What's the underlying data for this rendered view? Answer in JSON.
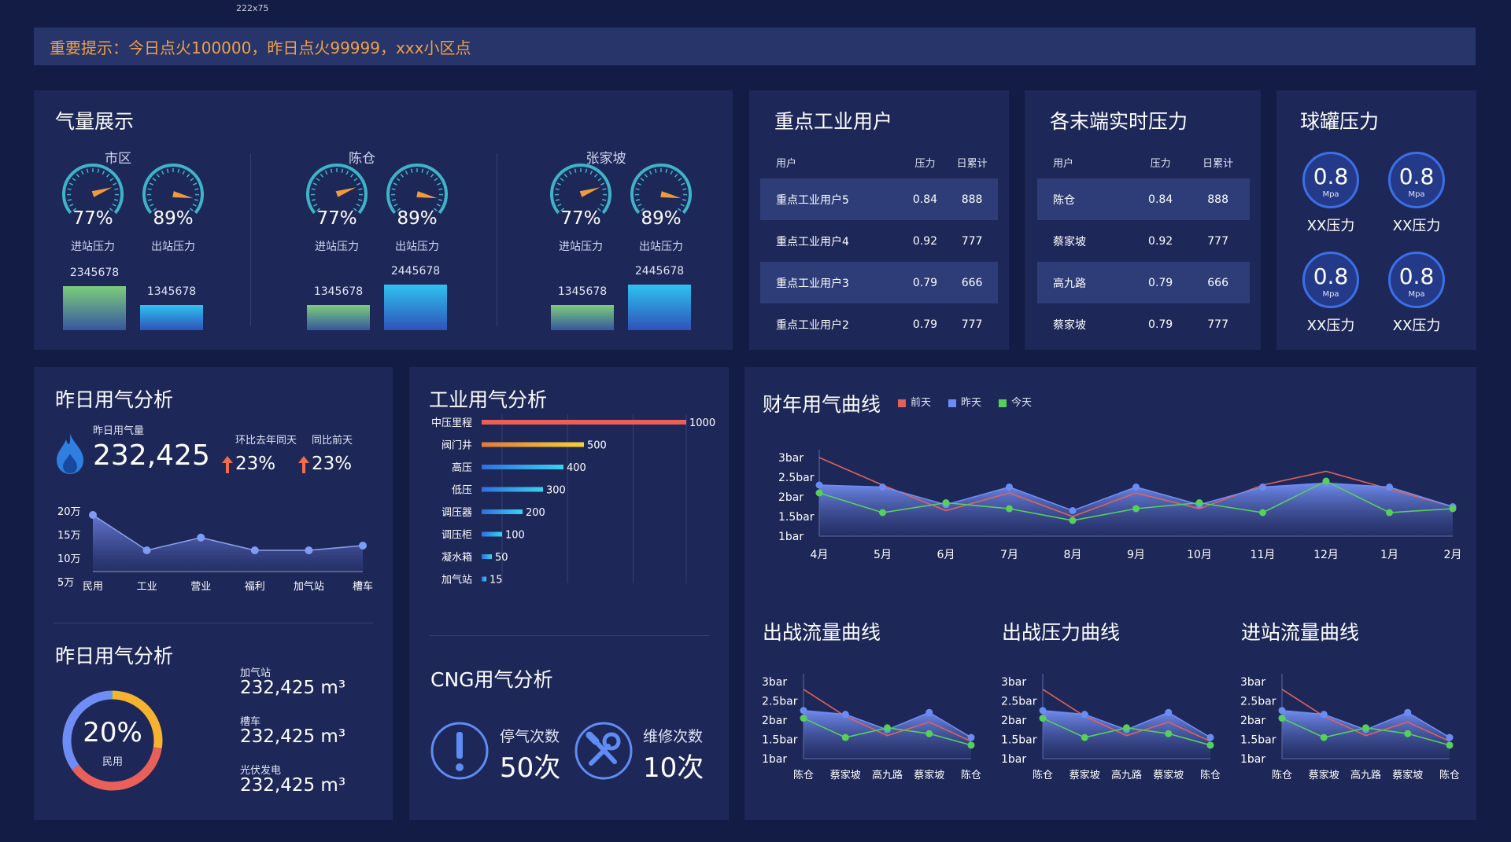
{
  "tiny_label": "222x75",
  "notice": "重要提示：今日点火100000，昨日点火99999，xxx小区点",
  "gas_display": {
    "title": "气量展示",
    "groups": [
      {
        "name": "市区",
        "in_pct": "77%",
        "out_pct": "89%",
        "in_value": 0.77,
        "out_value": 0.89,
        "in_label": "进站压力",
        "out_label": "出站压力",
        "bar1": "2345678",
        "bar2": "1345678"
      },
      {
        "name": "陈仓",
        "in_pct": "77%",
        "out_pct": "89%",
        "in_value": 0.77,
        "out_value": 0.89,
        "in_label": "进站压力",
        "out_label": "出站压力",
        "bar1": "1345678",
        "bar2": "2445678"
      },
      {
        "name": "张家坡",
        "in_pct": "77%",
        "out_pct": "89%",
        "in_value": 0.77,
        "out_value": 0.89,
        "in_label": "进站压力",
        "out_label": "出站压力",
        "bar1": "1345678",
        "bar2": "2445678"
      }
    ]
  },
  "industrial_users": {
    "title": "重点工业用户",
    "headers": [
      "用户",
      "压力",
      "日累计"
    ],
    "rows": [
      [
        "重点工业用户5",
        "0.84",
        "888"
      ],
      [
        "重点工业用户4",
        "0.92",
        "777"
      ],
      [
        "重点工业用户3",
        "0.79",
        "666"
      ],
      [
        "重点工业用户2",
        "0.79",
        "777"
      ]
    ]
  },
  "terminal_pressure": {
    "title": "各末端实时压力",
    "headers": [
      "用户",
      "压力",
      "日累计"
    ],
    "rows": [
      [
        "陈仓",
        "0.84",
        "888"
      ],
      [
        "蔡家坡",
        "0.92",
        "777"
      ],
      [
        "高九路",
        "0.79",
        "666"
      ],
      [
        "蔡家坡",
        "0.79",
        "777"
      ]
    ]
  },
  "tank_pressure": {
    "title": "球罐压力",
    "tanks": [
      {
        "value": "0.8",
        "unit": "Mpa",
        "label": "XX压力"
      },
      {
        "value": "0.8",
        "unit": "Mpa",
        "label": "XX压力"
      },
      {
        "value": "0.8",
        "unit": "Mpa",
        "label": "XX压力"
      },
      {
        "value": "0.8",
        "unit": "Mpa",
        "label": "XX压力"
      }
    ]
  },
  "yesterday_usage": {
    "title": "昨日用气分析",
    "usage_label": "昨日用气量",
    "usage_value": "232,425",
    "yoy_label": "环比去年同天",
    "yoy_value": "23%",
    "dod_label": "同比前天",
    "dod_value": "23%"
  },
  "yesterday_usage2": {
    "title": "昨日用气分析",
    "donut_pct": "20%",
    "donut_value": 0.2,
    "donut_label": "民用",
    "items": [
      {
        "label": "加气站",
        "value": "232,425 m³"
      },
      {
        "label": "槽车",
        "value": "232,425 m³"
      },
      {
        "label": "光伏发电",
        "value": "232,425 m³"
      }
    ]
  },
  "industry_analysis": {
    "title": "工业用气分析"
  },
  "cng": {
    "title": "CNG用气分析",
    "stop_label": "停气次数",
    "stop_value": "50次",
    "repair_label": "维修次数",
    "repair_value": "10次"
  },
  "fiscal_chart": {
    "title": "财年用气曲线"
  },
  "out_flow": {
    "title": "出战流量曲线"
  },
  "out_pressure": {
    "title": "出战压力曲线"
  },
  "in_flow": {
    "title": "进站流量曲线"
  },
  "chart_data": [
    {
      "id": "yesterday_area",
      "type": "area",
      "categories": [
        "民用",
        "工业",
        "营业",
        "福利",
        "加气站",
        "槽车"
      ],
      "y_ticks": [
        "20万",
        "15万",
        "10万",
        "5万"
      ],
      "ylim": [
        5,
        20
      ],
      "series": [
        {
          "values": [
            20,
            12.5,
            15.2,
            12.5,
            12.5,
            13.5
          ]
        }
      ]
    },
    {
      "id": "industry_bar",
      "type": "bar",
      "orientation": "horizontal",
      "categories": [
        "中压里程",
        "阀门井",
        "高压",
        "低压",
        "调压器",
        "调压柜",
        "凝水箱",
        "加气站"
      ],
      "values": [
        1000,
        500,
        400,
        300,
        200,
        100,
        50,
        15
      ],
      "xlim": [
        0,
        1000
      ]
    },
    {
      "id": "fiscal",
      "type": "line",
      "categories": [
        "4月",
        "5月",
        "6月",
        "7月",
        "8月",
        "9月",
        "10月",
        "11月",
        "12月",
        "1月",
        "2月"
      ],
      "y_ticks": [
        "3bar",
        "2.5bar",
        "2bar",
        "1.5bar",
        "1bar"
      ],
      "ylim": [
        1,
        3
      ],
      "legend": "top",
      "series": [
        {
          "name": "前天",
          "color": "#e0615a",
          "values": [
            3.0,
            2.3,
            1.65,
            2.1,
            1.5,
            2.1,
            1.7,
            2.3,
            2.65,
            2.2,
            1.75
          ]
        },
        {
          "name": "昨天",
          "color": "#6c8cf5",
          "values": [
            2.3,
            2.25,
            1.8,
            2.25,
            1.65,
            2.25,
            1.8,
            2.25,
            2.35,
            2.25,
            1.75
          ]
        },
        {
          "name": "今天",
          "color": "#55d05b",
          "values": [
            2.1,
            1.6,
            1.85,
            1.7,
            1.4,
            1.7,
            1.85,
            1.6,
            2.4,
            1.6,
            1.7
          ]
        }
      ]
    },
    {
      "id": "out_flow",
      "type": "line",
      "categories": [
        "陈仓",
        "蔡家坡",
        "高九路",
        "蔡家坡",
        "陈仓"
      ],
      "y_ticks": [
        "3bar",
        "2.5bar",
        "2bar",
        "1.5bar",
        "1bar"
      ],
      "ylim": [
        1,
        3
      ],
      "series": [
        {
          "color": "#e0615a",
          "values": [
            2.8,
            2.1,
            1.6,
            1.95,
            1.45
          ]
        },
        {
          "color": "#6c8cf5",
          "values": [
            2.25,
            2.15,
            1.75,
            2.2,
            1.55
          ]
        },
        {
          "color": "#55d05b",
          "values": [
            2.05,
            1.55,
            1.8,
            1.65,
            1.35
          ]
        }
      ]
    },
    {
      "id": "out_pressure",
      "type": "line",
      "categories": [
        "陈仓",
        "蔡家坡",
        "高九路",
        "蔡家坡",
        "陈仓"
      ],
      "y_ticks": [
        "3bar",
        "2.5bar",
        "2bar",
        "1.5bar",
        "1bar"
      ],
      "ylim": [
        1,
        3
      ],
      "series": [
        {
          "color": "#e0615a",
          "values": [
            2.8,
            2.1,
            1.6,
            1.95,
            1.45
          ]
        },
        {
          "color": "#6c8cf5",
          "values": [
            2.25,
            2.15,
            1.75,
            2.2,
            1.55
          ]
        },
        {
          "color": "#55d05b",
          "values": [
            2.05,
            1.55,
            1.8,
            1.65,
            1.35
          ]
        }
      ]
    },
    {
      "id": "in_flow",
      "type": "line",
      "categories": [
        "陈仓",
        "蔡家坡",
        "高九路",
        "蔡家坡",
        "陈仓"
      ],
      "y_ticks": [
        "3bar",
        "2.5bar",
        "2bar",
        "1.5bar",
        "1bar"
      ],
      "ylim": [
        1,
        3
      ],
      "series": [
        {
          "color": "#e0615a",
          "values": [
            2.8,
            2.1,
            1.6,
            1.95,
            1.45
          ]
        },
        {
          "color": "#6c8cf5",
          "values": [
            2.25,
            2.15,
            1.75,
            2.2,
            1.55
          ]
        },
        {
          "color": "#55d05b",
          "values": [
            2.05,
            1.55,
            1.8,
            1.65,
            1.35
          ]
        }
      ]
    }
  ]
}
